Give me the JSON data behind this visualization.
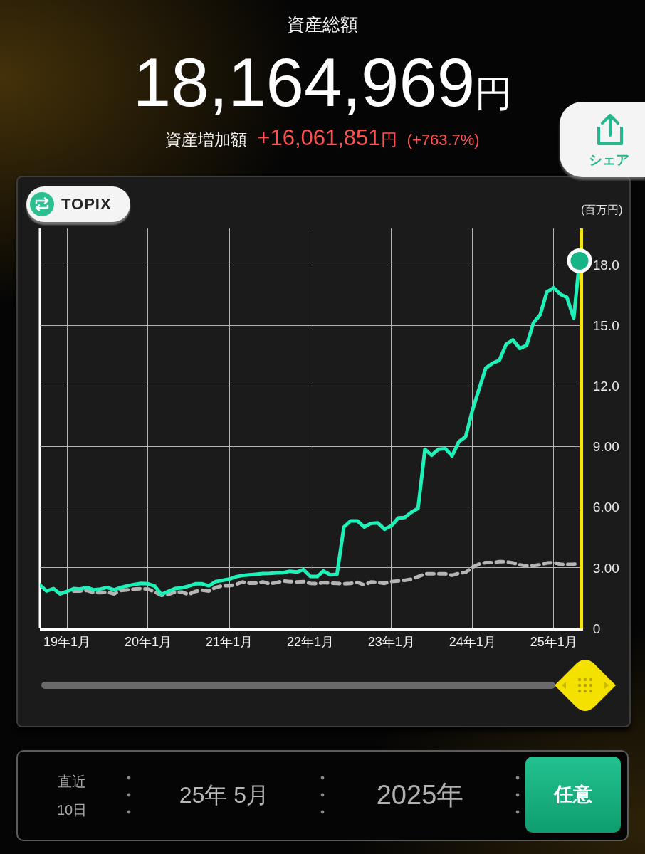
{
  "chart_data": {
    "type": "line",
    "title": "資産総額",
    "subtitle": "18,164,969円",
    "ylabel": "(百万円)",
    "annotations": [
      "資産増加額",
      "+16,061,851円",
      "(+763.7%)",
      "TOPIX",
      "シェア",
      "直近 10日",
      "25年 5月",
      "2025年",
      "任意"
    ],
    "x": [
      "2018-09-01",
      "2018-10-01",
      "2018-11-01",
      "2018-12-01",
      "2019-01-01",
      "2019-02-01",
      "2019-03-01",
      "2019-04-01",
      "2019-05-01",
      "2019-06-01",
      "2019-07-01",
      "2019-08-01",
      "2019-09-01",
      "2019-10-01",
      "2019-11-01",
      "2019-12-01",
      "2020-01-01",
      "2020-02-01",
      "2020-03-01",
      "2020-04-01",
      "2020-05-01",
      "2020-06-01",
      "2020-07-01",
      "2020-08-01",
      "2020-09-01",
      "2020-10-01",
      "2020-11-01",
      "2020-12-01",
      "2021-01-01",
      "2021-02-01",
      "2021-03-01",
      "2021-04-01",
      "2021-05-01",
      "2021-06-01",
      "2021-07-01",
      "2021-08-01",
      "2021-09-01",
      "2021-10-01",
      "2021-11-01",
      "2021-12-01",
      "2022-01-01",
      "2022-02-01",
      "2022-03-01",
      "2022-04-01",
      "2022-05-01",
      "2022-06-01",
      "2022-07-01",
      "2022-08-01",
      "2022-09-01",
      "2022-10-01",
      "2022-11-01",
      "2022-12-01",
      "2023-01-01",
      "2023-02-01",
      "2023-03-01",
      "2023-04-01",
      "2023-05-01",
      "2023-06-01",
      "2023-07-01",
      "2023-08-01",
      "2023-09-01",
      "2023-10-01",
      "2023-11-01",
      "2023-12-01",
      "2024-01-01",
      "2024-02-01",
      "2024-03-01",
      "2024-04-01",
      "2024-05-01",
      "2024-06-01",
      "2024-07-01",
      "2024-08-01",
      "2024-09-01",
      "2024-10-01",
      "2024-11-01",
      "2024-12-01",
      "2025-01-01",
      "2025-02-01",
      "2025-03-01",
      "2025-04-01",
      "2025-04-27"
    ],
    "series": [
      {
        "color": "#b5b5b5",
        "line_style": "dashed",
        "values": [
          null,
          null,
          null,
          null,
          null,
          1.85,
          1.85,
          1.88,
          1.77,
          1.77,
          1.8,
          1.71,
          1.88,
          1.91,
          1.95,
          1.97,
          1.95,
          1.8,
          1.64,
          1.68,
          1.8,
          1.8,
          1.68,
          1.83,
          1.89,
          1.85,
          2.03,
          2.11,
          2.11,
          2.18,
          2.3,
          2.24,
          2.24,
          2.3,
          2.21,
          2.27,
          2.35,
          2.32,
          2.3,
          2.32,
          2.23,
          2.22,
          2.27,
          2.24,
          2.23,
          2.21,
          2.23,
          2.28,
          2.15,
          2.3,
          2.28,
          2.23,
          2.32,
          2.35,
          2.38,
          2.44,
          2.56,
          2.7,
          2.7,
          2.7,
          2.7,
          2.63,
          2.73,
          2.77,
          3.03,
          3.19,
          3.26,
          3.26,
          3.3,
          3.3,
          3.24,
          3.15,
          3.09,
          3.11,
          3.15,
          3.24,
          3.26,
          3.17,
          3.17,
          3.17,
          3.26
        ]
      },
      {
        "color": "#1ff0b8",
        "values": [
          2.15,
          1.85,
          1.97,
          1.71,
          1.83,
          1.97,
          1.95,
          2.03,
          1.91,
          1.95,
          2.03,
          1.91,
          2.03,
          2.11,
          2.18,
          2.23,
          2.21,
          2.09,
          1.68,
          1.83,
          1.97,
          2.01,
          2.09,
          2.21,
          2.21,
          2.11,
          2.32,
          2.38,
          2.44,
          2.56,
          2.62,
          2.65,
          2.68,
          2.71,
          2.72,
          2.75,
          2.76,
          2.83,
          2.79,
          2.91,
          2.57,
          2.57,
          2.84,
          2.65,
          2.68,
          5.02,
          5.32,
          5.32,
          5.02,
          5.2,
          5.22,
          4.91,
          5.08,
          5.47,
          5.49,
          5.75,
          5.94,
          8.87,
          8.57,
          8.87,
          8.9,
          8.54,
          9.25,
          9.48,
          10.8,
          11.9,
          12.89,
          13.13,
          13.27,
          14.07,
          14.28,
          13.86,
          14.01,
          15.12,
          15.53,
          16.65,
          16.86,
          16.53,
          16.39,
          15.36,
          18.2
        ]
      },
      {
        "type": "scatter",
        "color": "#16b487",
        "marker": "circle",
        "x": [
          "2025-04-27"
        ],
        "values": [
          18.2
        ]
      }
    ],
    "xlim": [
      "2018-09-01",
      "2025-04-27"
    ],
    "xticks": [
      {
        "value": "2019-01-01",
        "label": "19年1月"
      },
      {
        "value": "2020-01-01",
        "label": "20年1月"
      },
      {
        "value": "2021-01-01",
        "label": "21年1月"
      },
      {
        "value": "2022-01-01",
        "label": "22年1月"
      },
      {
        "value": "2023-01-01",
        "label": "23年1月"
      },
      {
        "value": "2024-01-01",
        "label": "24年1月"
      },
      {
        "value": "2025-01-01",
        "label": "25年1月"
      }
    ],
    "ylim": [
      0,
      19.8
    ],
    "yticks": [
      0,
      {
        "value": 3,
        "label": "3.00"
      },
      {
        "value": 6,
        "label": "6.00"
      },
      {
        "value": 9,
        "label": "9.00"
      },
      {
        "value": 12,
        "label": "12.0"
      },
      {
        "value": 15,
        "label": "15.0"
      },
      {
        "value": 18,
        "label": "18.0"
      }
    ],
    "grid": true,
    "marker": "none",
    "line_style": "solid"
  }
}
